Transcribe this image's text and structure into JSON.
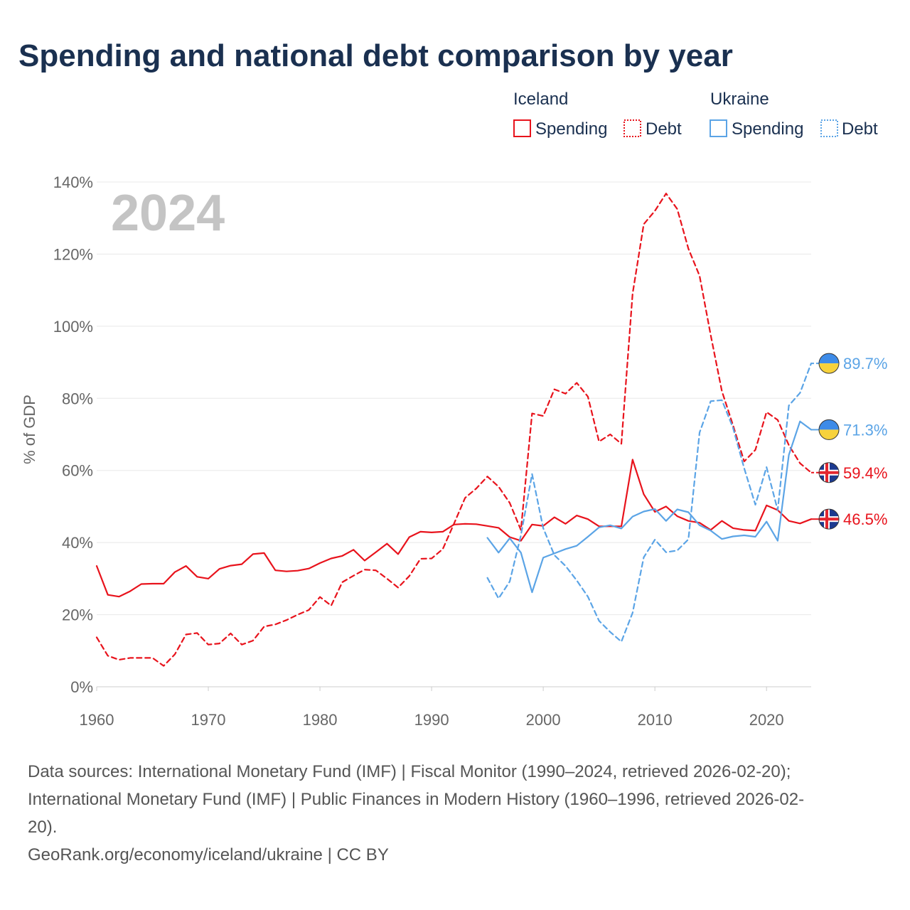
{
  "chart_data": {
    "type": "line",
    "title": "Spending and national debt comparison by year",
    "ylabel": "% of GDP",
    "xlabel": "",
    "year_label": "2024",
    "xlim": [
      1960,
      2024
    ],
    "ylim": [
      0,
      140
    ],
    "x_ticks": [
      1960,
      1970,
      1980,
      1990,
      2000,
      2010,
      2020
    ],
    "y_ticks": [
      {
        "value": 0,
        "label": "0%"
      },
      {
        "value": 20,
        "label": "20%"
      },
      {
        "value": 40,
        "label": "40%"
      },
      {
        "value": 60,
        "label": "60%"
      },
      {
        "value": 80,
        "label": "80%"
      },
      {
        "value": 100,
        "label": "100%"
      },
      {
        "value": 120,
        "label": "120%"
      },
      {
        "value": 140,
        "label": "140%"
      }
    ],
    "grid": true,
    "legend": {
      "placement": "top-right",
      "groups": [
        {
          "name": "Iceland",
          "items": [
            {
              "label": "Spending",
              "style": "solid"
            },
            {
              "label": "Debt",
              "style": "dashed"
            }
          ],
          "color": "#e8131c"
        },
        {
          "name": "Ukraine",
          "items": [
            {
              "label": "Spending",
              "style": "solid"
            },
            {
              "label": "Debt",
              "style": "dashed"
            }
          ],
          "color": "#5ba4e6"
        }
      ]
    },
    "series": [
      {
        "name": "Iceland Spending",
        "country": "Iceland",
        "metric": "Spending",
        "color": "#e8131c",
        "dash": false,
        "end_label": "46.5%",
        "flag": "iceland",
        "x": [
          1960,
          1961,
          1962,
          1963,
          1964,
          1965,
          1966,
          1967,
          1968,
          1969,
          1970,
          1971,
          1972,
          1973,
          1974,
          1975,
          1976,
          1977,
          1978,
          1979,
          1980,
          1981,
          1982,
          1983,
          1984,
          1985,
          1986,
          1987,
          1988,
          1989,
          1990,
          1991,
          1992,
          1993,
          1994,
          1995,
          1996,
          1997,
          1998,
          1999,
          2000,
          2001,
          2002,
          2003,
          2004,
          2005,
          2006,
          2007,
          2008,
          2009,
          2010,
          2011,
          2012,
          2013,
          2014,
          2015,
          2016,
          2017,
          2018,
          2019,
          2020,
          2021,
          2022,
          2023,
          2024
        ],
        "values": [
          33.5,
          25.5,
          25,
          26.5,
          28.5,
          28.6,
          28.6,
          31.8,
          33.5,
          30.5,
          30,
          32.7,
          33.6,
          34,
          36.8,
          37.1,
          32.3,
          32,
          32.2,
          32.8,
          34.3,
          35.6,
          36.3,
          38,
          35,
          37.3,
          39.7,
          36.8,
          41.5,
          43,
          42.8,
          43,
          45,
          45.2,
          45.1,
          44.6,
          44.1,
          41.5,
          40.5,
          45,
          44.6,
          47,
          45.2,
          47.5,
          46.5,
          44.5,
          44.5,
          44.5,
          63,
          53.4,
          48.5,
          50,
          47.3,
          46,
          45.5,
          43.5,
          46,
          44,
          43.5,
          43.3,
          50.3,
          49,
          46,
          45.3,
          46.5
        ]
      },
      {
        "name": "Iceland Debt",
        "country": "Iceland",
        "metric": "Debt",
        "color": "#e8131c",
        "dash": true,
        "end_label": "59.4%",
        "flag": "iceland",
        "x": [
          1960,
          1961,
          1962,
          1963,
          1964,
          1965,
          1966,
          1967,
          1968,
          1969,
          1970,
          1971,
          1972,
          1973,
          1974,
          1975,
          1976,
          1977,
          1978,
          1979,
          1980,
          1981,
          1982,
          1983,
          1984,
          1985,
          1986,
          1987,
          1988,
          1989,
          1990,
          1991,
          1992,
          1993,
          1994,
          1995,
          1996,
          1997,
          1998,
          1999,
          2000,
          2001,
          2002,
          2003,
          2004,
          2005,
          2006,
          2007,
          2008,
          2009,
          2010,
          2011,
          2012,
          2013,
          2014,
          2015,
          2016,
          2017,
          2018,
          2019,
          2020,
          2021,
          2022,
          2023,
          2024
        ],
        "values": [
          13.7,
          8.6,
          7.5,
          8,
          8,
          8,
          5.8,
          9,
          14.5,
          14.9,
          11.7,
          12,
          14.8,
          11.7,
          12.8,
          16.7,
          17.3,
          18.5,
          20,
          21.3,
          24.9,
          22.5,
          29,
          30.8,
          32.5,
          32.3,
          30,
          27.5,
          30.7,
          35.5,
          35.6,
          38.2,
          45.2,
          52.4,
          55,
          58.3,
          55.5,
          51,
          43.5,
          75.8,
          75.1,
          82.5,
          81.3,
          84.3,
          80.5,
          68,
          70,
          67.4,
          109,
          128.3,
          132,
          136.8,
          132.5,
          121.5,
          114,
          97.5,
          82,
          72.5,
          62.5,
          65.7,
          76.2,
          74,
          67,
          62,
          59.4
        ]
      },
      {
        "name": "Ukraine Spending",
        "country": "Ukraine",
        "metric": "Spending",
        "color": "#5ba4e6",
        "dash": false,
        "end_label": "71.3%",
        "flag": "ukraine",
        "x": [
          1995,
          1996,
          1997,
          1998,
          1999,
          2000,
          2001,
          2002,
          2003,
          2004,
          2005,
          2006,
          2007,
          2008,
          2009,
          2010,
          2011,
          2012,
          2013,
          2014,
          2015,
          2016,
          2017,
          2018,
          2019,
          2020,
          2021,
          2022,
          2023,
          2024
        ],
        "values": [
          41.3,
          37.2,
          41.2,
          37.2,
          26.2,
          35.8,
          37,
          38.2,
          39.1,
          41.6,
          44.2,
          44.8,
          43.9,
          47.2,
          48.6,
          49.3,
          46,
          49.2,
          48.4,
          44.8,
          43.3,
          41,
          41.7,
          42,
          41.6,
          45.8,
          40.5,
          64.3,
          73.6,
          71.3
        ]
      },
      {
        "name": "Ukraine Debt",
        "country": "Ukraine",
        "metric": "Debt",
        "color": "#5ba4e6",
        "dash": true,
        "end_label": "89.7%",
        "flag": "ukraine",
        "x": [
          1995,
          1996,
          1997,
          1998,
          1999,
          2000,
          2001,
          2002,
          2003,
          2004,
          2005,
          2006,
          2007,
          2008,
          2009,
          2010,
          2011,
          2012,
          2013,
          2014,
          2015,
          2016,
          2017,
          2018,
          2019,
          2020,
          2021,
          2022,
          2023,
          2024
        ],
        "values": [
          30.2,
          24.5,
          29.2,
          42,
          59,
          44,
          36.5,
          33.5,
          29.5,
          25,
          18.3,
          15.2,
          12.5,
          20.5,
          35.9,
          40.8,
          37.3,
          37.8,
          40.9,
          70.5,
          79.2,
          79.5,
          71.8,
          60.6,
          50.5,
          60.9,
          49,
          78,
          81.5,
          89.7
        ]
      }
    ]
  },
  "footer": {
    "source_lines": [
      "Data sources: International Monetary Fund (IMF) | Fiscal Monitor (1990–2024, retrieved 2026-02-20);",
      "International Monetary Fund (IMF) | Public Finances in Modern History (1960–1996, retrieved 2026-02-",
      "20)."
    ],
    "url_line": "GeoRank.org/economy/iceland/ukraine | CC BY"
  }
}
